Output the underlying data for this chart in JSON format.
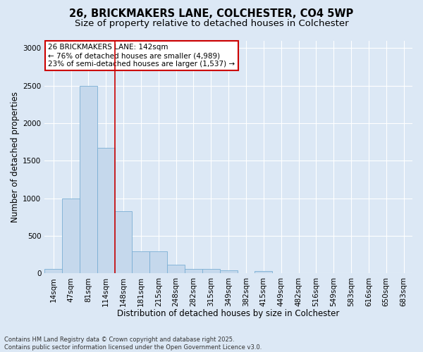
{
  "title_line1": "26, BRICKMAKERS LANE, COLCHESTER, CO4 5WP",
  "title_line2": "Size of property relative to detached houses in Colchester",
  "xlabel": "Distribution of detached houses by size in Colchester",
  "ylabel": "Number of detached properties",
  "footnote": "Contains HM Land Registry data © Crown copyright and database right 2025.\nContains public sector information licensed under the Open Government Licence v3.0.",
  "bar_labels": [
    "14sqm",
    "47sqm",
    "81sqm",
    "114sqm",
    "148sqm",
    "181sqm",
    "215sqm",
    "248sqm",
    "282sqm",
    "315sqm",
    "349sqm",
    "382sqm",
    "415sqm",
    "449sqm",
    "482sqm",
    "516sqm",
    "549sqm",
    "583sqm",
    "616sqm",
    "650sqm",
    "683sqm"
  ],
  "bar_values": [
    60,
    1000,
    2500,
    1670,
    830,
    290,
    290,
    120,
    60,
    55,
    40,
    0,
    30,
    0,
    0,
    0,
    0,
    0,
    0,
    0,
    0
  ],
  "bar_color": "#c5d8ec",
  "bar_edge_color": "#7aafd4",
  "ylim": [
    0,
    3100
  ],
  "yticks": [
    0,
    500,
    1000,
    1500,
    2000,
    2500,
    3000
  ],
  "vline_x": 3.5,
  "vline_color": "#cc0000",
  "annotation_box_text": "26 BRICKMAKERS LANE: 142sqm\n← 76% of detached houses are smaller (4,989)\n23% of semi-detached houses are larger (1,537) →",
  "annotation_box_color": "#cc0000",
  "bg_color": "#dce8f5",
  "plot_bg_color": "#dce8f5",
  "grid_color": "#ffffff",
  "title_fontsize": 10.5,
  "subtitle_fontsize": 9.5,
  "tick_fontsize": 7.5,
  "label_fontsize": 8.5,
  "annot_fontsize": 7.5,
  "footnote_fontsize": 6.0
}
